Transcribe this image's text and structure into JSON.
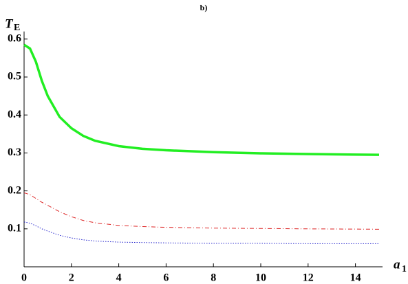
{
  "chart_data": {
    "type": "line",
    "title": "b)",
    "ylabel": "T",
    "ylabel_subscript": "E",
    "xlabel": "a",
    "xlabel_subscript": "1",
    "x": [
      0,
      0.25,
      0.5,
      0.75,
      1,
      1.5,
      2,
      2.5,
      3,
      4,
      5,
      6,
      8,
      10,
      12,
      15
    ],
    "series": [
      {
        "name": "green",
        "color": "#22ee22",
        "style": "solid",
        "width": 3.5,
        "values": [
          0.585,
          0.575,
          0.54,
          0.49,
          0.45,
          0.395,
          0.365,
          0.345,
          0.332,
          0.318,
          0.311,
          0.307,
          0.302,
          0.299,
          0.297,
          0.295
        ]
      },
      {
        "name": "red",
        "color": "#dd2222",
        "style": "dashdot",
        "width": 1,
        "values": [
          0.195,
          0.19,
          0.18,
          0.17,
          0.162,
          0.145,
          0.132,
          0.122,
          0.116,
          0.109,
          0.106,
          0.104,
          0.102,
          0.101,
          0.1,
          0.099
        ]
      },
      {
        "name": "blue",
        "color": "#2222cc",
        "style": "dotted",
        "width": 1,
        "values": [
          0.118,
          0.115,
          0.108,
          0.1,
          0.094,
          0.083,
          0.076,
          0.071,
          0.068,
          0.065,
          0.064,
          0.063,
          0.062,
          0.062,
          0.061,
          0.061
        ]
      }
    ],
    "xlim": [
      0,
      15
    ],
    "ylim": [
      0,
      0.62
    ],
    "xticks": [
      0,
      2,
      4,
      6,
      8,
      10,
      12,
      14
    ],
    "yticks": [
      0.1,
      0.2,
      0.3,
      0.4,
      0.5,
      0.6
    ],
    "grid": false
  }
}
